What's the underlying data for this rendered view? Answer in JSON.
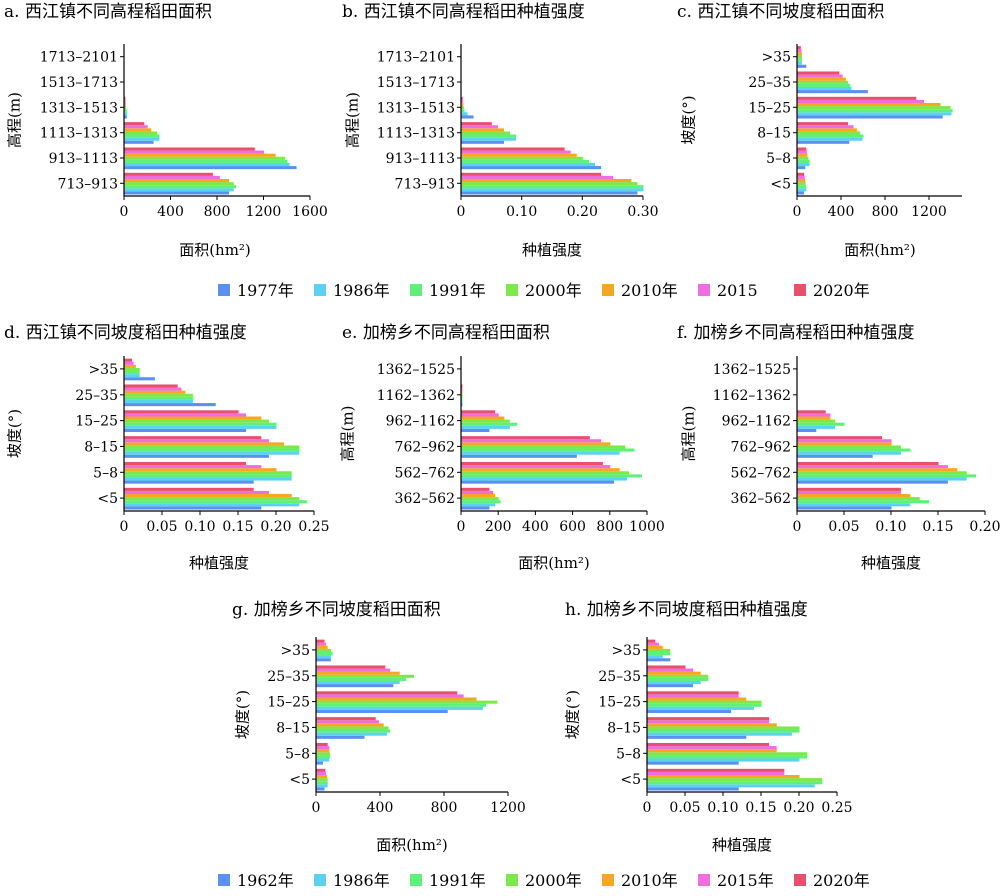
{
  "legend1": {
    "entries": [
      "1977年",
      "1986年",
      "1991年",
      "2000年",
      "2010年",
      "2015",
      "2020年"
    ],
    "colors": [
      "#5b8ff0",
      "#5bd3f0",
      "#5ef07a",
      "#7ee84a",
      "#f5a623",
      "#ee6ee0",
      "#e8506e"
    ]
  },
  "legend2": {
    "entries": [
      "1962年",
      "1986年",
      "1991年",
      "2000年",
      "2010年",
      "2015年",
      "2020年"
    ],
    "colors": [
      "#5b8ff0",
      "#5bd3f0",
      "#5ef07a",
      "#7ee84a",
      "#f5a623",
      "#ee6ee0",
      "#e8506e"
    ]
  },
  "chart_data": [
    {
      "id": "a",
      "type": "bar",
      "orientation": "horizontal",
      "legend": "legend1",
      "title": "a. 西江镇不同高程稻田面积",
      "xlabel": "面积(hm²)",
      "ylabel": "高程(m)",
      "xlim": [
        0,
        1600
      ],
      "xticks": [
        "0",
        "400",
        "800",
        "1200",
        "1600"
      ],
      "categories": [
        "713–913",
        "913–1113",
        "1113–1313",
        "1313–1513",
        "1513–1713",
        "1713–2101"
      ],
      "series": [
        {
          "name": "1977年",
          "values": [
            900,
            1480,
            250,
            20,
            0,
            0
          ]
        },
        {
          "name": "1986年",
          "values": [
            940,
            1420,
            300,
            20,
            0,
            0
          ]
        },
        {
          "name": "1991年",
          "values": [
            960,
            1400,
            300,
            20,
            0,
            0
          ]
        },
        {
          "name": "2000年",
          "values": [
            940,
            1380,
            280,
            15,
            0,
            0
          ]
        },
        {
          "name": "2010年",
          "values": [
            900,
            1300,
            230,
            12,
            0,
            0
          ]
        },
        {
          "name": "2015",
          "values": [
            820,
            1200,
            200,
            10,
            0,
            0
          ]
        },
        {
          "name": "2020年",
          "values": [
            760,
            1120,
            170,
            8,
            0,
            0
          ]
        }
      ]
    },
    {
      "id": "b",
      "type": "bar",
      "orientation": "horizontal",
      "legend": "legend1",
      "title": "b. 西江镇不同高程稻田种植强度",
      "xlabel": "种植强度",
      "ylabel": "高程(m)",
      "xlim": [
        0,
        0.3
      ],
      "xticks": [
        "0",
        "0.10",
        "0.20",
        "0.30"
      ],
      "categories": [
        "713–913",
        "913–1113",
        "1113–1313",
        "1313–1513",
        "1513–1713",
        "1713–2101"
      ],
      "series": [
        {
          "name": "1977年",
          "values": [
            0.29,
            0.23,
            0.07,
            0.02,
            0,
            0
          ]
        },
        {
          "name": "1986年",
          "values": [
            0.3,
            0.22,
            0.09,
            0.01,
            0,
            0
          ]
        },
        {
          "name": "1991年",
          "values": [
            0.3,
            0.21,
            0.09,
            0.005,
            0,
            0
          ]
        },
        {
          "name": "2000年",
          "values": [
            0.29,
            0.2,
            0.08,
            0.004,
            0,
            0
          ]
        },
        {
          "name": "2010年",
          "values": [
            0.28,
            0.19,
            0.07,
            0.003,
            0,
            0
          ]
        },
        {
          "name": "2015",
          "values": [
            0.25,
            0.18,
            0.06,
            0.002,
            0,
            0
          ]
        },
        {
          "name": "2020年",
          "values": [
            0.23,
            0.17,
            0.05,
            0.002,
            0,
            0
          ]
        }
      ]
    },
    {
      "id": "c",
      "type": "bar",
      "orientation": "horizontal",
      "legend": "legend1",
      "title": "c. 西江镇不同坡度稻田面积",
      "xlabel": "面积(hm²)",
      "ylabel": "坡度(°)",
      "xlim": [
        0,
        1500
      ],
      "xticks": [
        "0",
        "400",
        "800",
        "1200"
      ],
      "xtick_values": [
        0,
        400,
        800,
        1200
      ],
      "categories": [
        "<5",
        "5–8",
        "8–15",
        "15–25",
        "25–35",
        ">35"
      ],
      "series": [
        {
          "name": "1977年",
          "values": [
            60,
            70,
            470,
            1320,
            640,
            80
          ]
        },
        {
          "name": "1986年",
          "values": [
            80,
            110,
            590,
            1400,
            490,
            40
          ]
        },
        {
          "name": "1991年",
          "values": [
            80,
            110,
            600,
            1410,
            480,
            40
          ]
        },
        {
          "name": "2000年",
          "values": [
            75,
            100,
            570,
            1390,
            460,
            40
          ]
        },
        {
          "name": "2010年",
          "values": [
            70,
            90,
            540,
            1300,
            440,
            40
          ]
        },
        {
          "name": "2015",
          "values": [
            65,
            85,
            510,
            1150,
            410,
            35
          ]
        },
        {
          "name": "2020年",
          "values": [
            60,
            80,
            460,
            1080,
            380,
            30
          ]
        }
      ]
    },
    {
      "id": "d",
      "type": "bar",
      "orientation": "horizontal",
      "legend": "legend1",
      "title": "d. 西江镇不同坡度稻田种植强度",
      "xlabel": "种植强度",
      "ylabel": "坡度(°)",
      "xlim": [
        0,
        0.25
      ],
      "xticks": [
        "0",
        "0.05",
        "0.10",
        "0.15",
        "0.20",
        "0.25"
      ],
      "categories": [
        "<5",
        "5–8",
        "8–15",
        "15–25",
        "25–35",
        ">35"
      ],
      "series": [
        {
          "name": "1977年",
          "values": [
            0.18,
            0.17,
            0.19,
            0.16,
            0.12,
            0.04
          ]
        },
        {
          "name": "1986年",
          "values": [
            0.23,
            0.22,
            0.23,
            0.2,
            0.09,
            0.02
          ]
        },
        {
          "name": "1991年",
          "values": [
            0.24,
            0.22,
            0.23,
            0.2,
            0.09,
            0.02
          ]
        },
        {
          "name": "2000年",
          "values": [
            0.23,
            0.22,
            0.23,
            0.19,
            0.09,
            0.02
          ]
        },
        {
          "name": "2010年",
          "values": [
            0.22,
            0.2,
            0.21,
            0.18,
            0.08,
            0.015
          ]
        },
        {
          "name": "2015",
          "values": [
            0.19,
            0.18,
            0.19,
            0.16,
            0.075,
            0.012
          ]
        },
        {
          "name": "2020年",
          "values": [
            0.17,
            0.16,
            0.18,
            0.15,
            0.07,
            0.01
          ]
        }
      ]
    },
    {
      "id": "e",
      "type": "bar",
      "orientation": "horizontal",
      "legend": "legend1",
      "title": "e. 加榜乡不同高程稻田面积",
      "xlabel": "面积(hm²)",
      "ylabel": "高程(m)",
      "xlim": [
        0,
        1000
      ],
      "xticks": [
        "0",
        "200",
        "400",
        "600",
        "800",
        "1000"
      ],
      "categories": [
        "362–562",
        "562–762",
        "762–962",
        "962–1162",
        "1162–1362",
        "1362–1525"
      ],
      "series": [
        {
          "name": "1977年",
          "values": [
            150,
            820,
            620,
            150,
            5,
            0
          ]
        },
        {
          "name": "1986年",
          "values": [
            180,
            890,
            850,
            260,
            5,
            0
          ]
        },
        {
          "name": "1991年",
          "values": [
            210,
            970,
            930,
            300,
            5,
            0
          ]
        },
        {
          "name": "2000年",
          "values": [
            200,
            900,
            880,
            260,
            5,
            0
          ]
        },
        {
          "name": "2010年",
          "values": [
            180,
            850,
            800,
            230,
            5,
            0
          ]
        },
        {
          "name": "2015",
          "values": [
            170,
            800,
            750,
            200,
            5,
            0
          ]
        },
        {
          "name": "2020年",
          "values": [
            150,
            760,
            690,
            180,
            5,
            0
          ]
        }
      ]
    },
    {
      "id": "f",
      "type": "bar",
      "orientation": "horizontal",
      "legend": "legend1",
      "title": "f. 加榜乡不同高程稻田种植强度",
      "xlabel": "种植强度",
      "ylabel": "高程(m)",
      "xlim": [
        0,
        0.2
      ],
      "xticks": [
        "0",
        "0.05",
        "0.10",
        "0.15",
        "0.20"
      ],
      "categories": [
        "362–562",
        "562–762",
        "762–962",
        "962–1162",
        "1162–1362",
        "1362–1525"
      ],
      "series": [
        {
          "name": "1977年",
          "values": [
            0.1,
            0.16,
            0.08,
            0.02,
            0,
            0
          ]
        },
        {
          "name": "1986年",
          "values": [
            0.12,
            0.18,
            0.11,
            0.04,
            0,
            0
          ]
        },
        {
          "name": "1991年",
          "values": [
            0.14,
            0.19,
            0.12,
            0.05,
            0,
            0
          ]
        },
        {
          "name": "2000年",
          "values": [
            0.13,
            0.18,
            0.11,
            0.04,
            0,
            0
          ]
        },
        {
          "name": "2010年",
          "values": [
            0.12,
            0.17,
            0.1,
            0.035,
            0,
            0
          ]
        },
        {
          "name": "2015",
          "values": [
            0.11,
            0.16,
            0.1,
            0.035,
            0,
            0
          ]
        },
        {
          "name": "2020年",
          "values": [
            0.11,
            0.15,
            0.09,
            0.03,
            0,
            0
          ]
        }
      ]
    },
    {
      "id": "g",
      "type": "bar",
      "orientation": "horizontal",
      "legend": "legend2",
      "title": "g. 加榜乡不同坡度稻田面积",
      "xlabel": "面积(hm²)",
      "ylabel": "坡度(°)",
      "xlim": [
        0,
        1200
      ],
      "xticks": [
        "0",
        "400",
        "800",
        "1200"
      ],
      "categories": [
        "<5",
        "5–8",
        "8–15",
        "15–25",
        "25–35",
        ">35"
      ],
      "series": [
        {
          "name": "1962年",
          "values": [
            50,
            40,
            300,
            820,
            480,
            90
          ]
        },
        {
          "name": "1986年",
          "values": [
            70,
            80,
            440,
            1040,
            520,
            90
          ]
        },
        {
          "name": "1991年",
          "values": [
            70,
            85,
            460,
            1060,
            560,
            100
          ]
        },
        {
          "name": "2000年",
          "values": [
            70,
            85,
            450,
            1130,
            610,
            90
          ]
        },
        {
          "name": "2010年",
          "values": [
            65,
            80,
            420,
            1000,
            520,
            70
          ]
        },
        {
          "name": "2015年",
          "values": [
            60,
            80,
            390,
            920,
            460,
            60
          ]
        },
        {
          "name": "2020年",
          "values": [
            55,
            70,
            370,
            880,
            430,
            50
          ]
        }
      ]
    },
    {
      "id": "h",
      "type": "bar",
      "orientation": "horizontal",
      "legend": "legend2",
      "title": "h. 加榜乡不同坡度稻田种植强度",
      "xlabel": "种植强度",
      "ylabel": "坡度(°)",
      "xlim": [
        0,
        0.25
      ],
      "xticks": [
        "0",
        "0.05",
        "0.10",
        "0.15",
        "0.20",
        "0.25"
      ],
      "categories": [
        "<5",
        "5–8",
        "8–15",
        "15–25",
        "25–35",
        ">35"
      ],
      "series": [
        {
          "name": "1962年",
          "values": [
            0.12,
            0.12,
            0.13,
            0.11,
            0.06,
            0.03
          ]
        },
        {
          "name": "1986年",
          "values": [
            0.22,
            0.2,
            0.19,
            0.14,
            0.07,
            0.02
          ]
        },
        {
          "name": "1991年",
          "values": [
            0.23,
            0.21,
            0.2,
            0.15,
            0.08,
            0.03
          ]
        },
        {
          "name": "2000年",
          "values": [
            0.23,
            0.21,
            0.2,
            0.15,
            0.08,
            0.03
          ]
        },
        {
          "name": "2010年",
          "values": [
            0.2,
            0.17,
            0.17,
            0.13,
            0.07,
            0.02
          ]
        },
        {
          "name": "2015年",
          "values": [
            0.18,
            0.17,
            0.16,
            0.12,
            0.06,
            0.015
          ]
        },
        {
          "name": "2020年",
          "values": [
            0.18,
            0.16,
            0.16,
            0.12,
            0.05,
            0.01
          ]
        }
      ]
    }
  ]
}
